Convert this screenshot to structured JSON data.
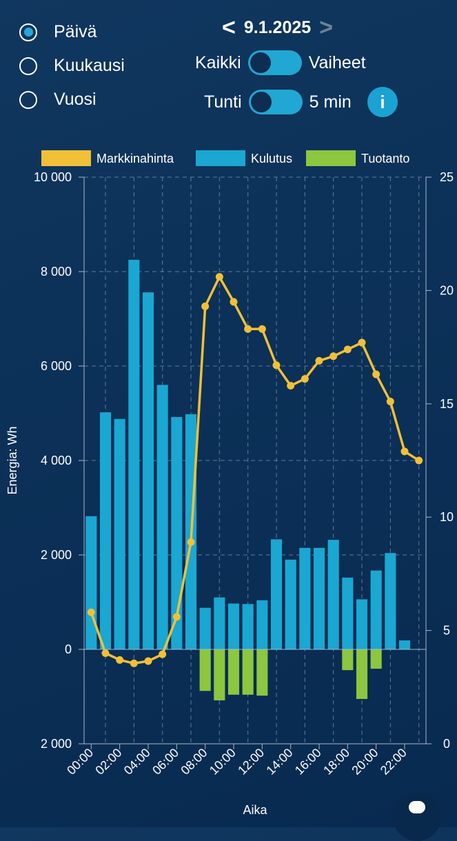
{
  "period_options": [
    {
      "label": "Päivä",
      "selected": true
    },
    {
      "label": "Kuukausi",
      "selected": false
    },
    {
      "label": "Vuosi",
      "selected": false
    }
  ],
  "date_nav": {
    "prev": "<",
    "date": "9.1.2025",
    "next": ">"
  },
  "toggles": {
    "phase": {
      "left": "Kaikki",
      "right": "Vaiheet"
    },
    "resolution": {
      "left": "Tunti",
      "right": "5 min"
    }
  },
  "info_label": "i",
  "colors": {
    "price": "#f2c037",
    "consumption": "#1aa7d2",
    "production": "#8dc63f"
  },
  "chart_data": {
    "type": "bar",
    "legend": [
      "Markkinahinta",
      "Kulutus",
      "Tuotanto"
    ],
    "legend_position": "top",
    "xlabel": "Aika",
    "ylabel": "Energia: Wh",
    "hours": [
      "00:00",
      "01:00",
      "02:00",
      "03:00",
      "04:00",
      "05:00",
      "06:00",
      "07:00",
      "08:00",
      "09:00",
      "10:00",
      "11:00",
      "12:00",
      "13:00",
      "14:00",
      "15:00",
      "16:00",
      "17:00",
      "18:00",
      "19:00",
      "20:00",
      "21:00",
      "22:00",
      "23:00"
    ],
    "xtick_labels": [
      "00:00",
      "02:00",
      "04:00",
      "06:00",
      "08:00",
      "10:00",
      "12:00",
      "14:00",
      "16:00",
      "18:00",
      "20:00",
      "22:00"
    ],
    "ylim": [
      -2000,
      10000
    ],
    "y_ticks": [
      -2000,
      0,
      2000,
      4000,
      6000,
      8000,
      10000
    ],
    "y_tick_labels": [
      "2 000",
      "0",
      "2 000",
      "4 000",
      "6 000",
      "8 000",
      "10 000"
    ],
    "y2lim": [
      0,
      25
    ],
    "y2_tick_labels": [
      "0",
      "5",
      "10",
      "15",
      "20",
      "25"
    ],
    "grid": true,
    "series": [
      {
        "name": "Kulutus",
        "type": "bar",
        "values": [
          2820,
          5020,
          4880,
          8250,
          7560,
          5600,
          4920,
          4980,
          880,
          1100,
          970,
          960,
          1040,
          2330,
          1900,
          2150,
          2150,
          2320,
          1520,
          1060,
          1670,
          2040,
          190,
          0
        ]
      },
      {
        "name": "Tuotanto",
        "type": "bar",
        "values": [
          0,
          0,
          0,
          0,
          0,
          0,
          0,
          0,
          -880,
          -1080,
          -960,
          -960,
          -980,
          0,
          0,
          0,
          0,
          0,
          -440,
          -1050,
          -410,
          0,
          0,
          0
        ]
      },
      {
        "name": "Markkinahinta",
        "type": "line",
        "axis": "right",
        "values": [
          5.8,
          4.0,
          3.7,
          3.55,
          3.65,
          3.95,
          5.6,
          8.9,
          19.3,
          20.6,
          19.5,
          18.3,
          18.3,
          16.7,
          15.8,
          16.1,
          16.9,
          17.1,
          17.4,
          17.7,
          16.3,
          15.1,
          12.9,
          12.5
        ]
      }
    ]
  }
}
